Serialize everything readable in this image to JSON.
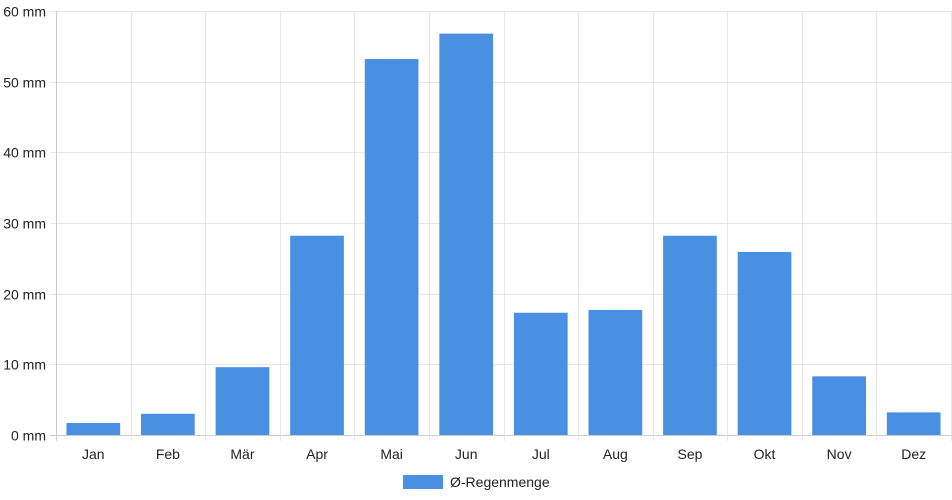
{
  "chart_data": {
    "type": "bar",
    "categories": [
      "Jan",
      "Feb",
      "Mär",
      "Apr",
      "Mai",
      "Jun",
      "Jul",
      "Aug",
      "Sep",
      "Okt",
      "Nov",
      "Dez"
    ],
    "series": [
      {
        "name": "Ø-Regenmenge",
        "values": [
          1.7,
          3.0,
          9.6,
          28.2,
          53.2,
          56.8,
          17.3,
          17.7,
          28.2,
          25.9,
          8.3,
          3.2
        ]
      }
    ],
    "y_ticks": [
      "0 mm",
      "10 mm",
      "20 mm",
      "30 mm",
      "40 mm",
      "50 mm",
      "60 mm"
    ],
    "ylim": [
      0,
      60
    ],
    "y_unit": "mm",
    "grid": true,
    "legend_position": "bottom-center",
    "colors": {
      "bar": "#4a90e2",
      "grid": "#e6e6e6",
      "axis": "#cccccc"
    }
  }
}
